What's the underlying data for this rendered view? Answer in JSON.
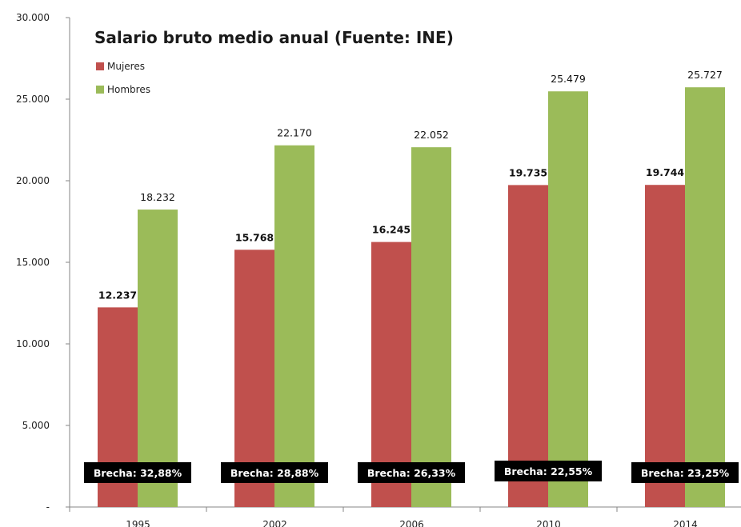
{
  "chart_data": {
    "type": "bar",
    "title": "Salario bruto medio anual (Fuente: INE)",
    "categories": [
      "1995",
      "2002",
      "2006",
      "2010",
      "2014"
    ],
    "series": [
      {
        "name": "Mujeres",
        "color": "#c0504d",
        "values": [
          12237,
          15768,
          16245,
          19735,
          19744
        ],
        "labels": [
          "12.237",
          "15.768",
          "16.245",
          "19.735",
          "19.744"
        ]
      },
      {
        "name": "Hombres",
        "color": "#9bbb59",
        "values": [
          18232,
          22170,
          22052,
          25479,
          25727
        ],
        "labels": [
          "18.232",
          "22.170",
          "22.052",
          "25.479",
          "25.727"
        ]
      }
    ],
    "ylim": [
      0,
      30000
    ],
    "yticks": [
      0,
      5000,
      10000,
      15000,
      20000,
      25000,
      30000
    ],
    "ytick_labels": [
      "-",
      "5.000",
      "10.000",
      "15.000",
      "20.000",
      "25.000",
      "30.000"
    ],
    "annotations": [
      "Brecha: 32,88%",
      "Brecha: 28,88%",
      "Brecha: 26,33%",
      "Brecha: 22,55%",
      "Brecha: 23,25%"
    ],
    "legend_position": "top-left",
    "grid": false
  }
}
